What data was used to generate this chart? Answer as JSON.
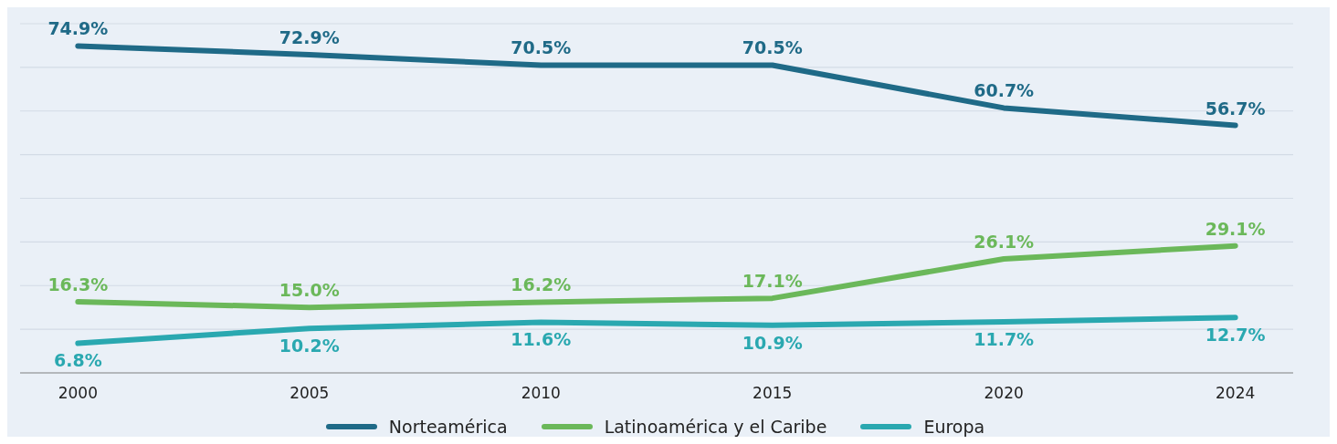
{
  "chart_data": {
    "type": "line",
    "categories": [
      "2000",
      "2005",
      "2010",
      "2015",
      "2020",
      "2024"
    ],
    "series": [
      {
        "name": "Norteamérica",
        "color": "#1f6a87",
        "values": [
          74.9,
          72.9,
          70.5,
          70.5,
          60.7,
          56.7
        ],
        "value_labels": [
          "74.9%",
          "72.9%",
          "70.5%",
          "70.5%",
          "60.7%",
          "56.7%"
        ]
      },
      {
        "name": "Latinoamérica y el Caribe",
        "color": "#6bb85a",
        "values": [
          16.3,
          15.0,
          16.2,
          17.1,
          26.1,
          29.1
        ],
        "value_labels": [
          "16.3%",
          "15.0%",
          "16.2%",
          "17.1%",
          "26.1%",
          "29.1%"
        ]
      },
      {
        "name": "Europa",
        "color": "#2aa8b0",
        "values": [
          6.8,
          10.2,
          11.6,
          10.9,
          11.7,
          12.7
        ],
        "value_labels": [
          "6.8%",
          "10.2%",
          "11.6%",
          "10.9%",
          "11.7%",
          "12.7%"
        ]
      }
    ],
    "tick_labels": "x",
    "grid": "y",
    "legend": "bottom",
    "marker": "none",
    "line_style": "solid"
  }
}
